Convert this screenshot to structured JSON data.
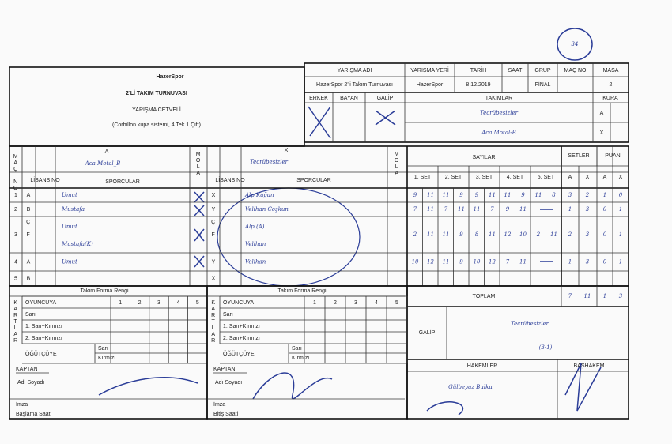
{
  "match_no": "34",
  "header": {
    "logo": "HazerSpor",
    "title": "2'Lİ TAKIM TURNUVASI",
    "subtitle": "YARIŞMA CETVELİ",
    "note": "(Corbillon kupa sistemi, 4 Tek 1 Çift)"
  },
  "info": [
    {
      "label": "YARIŞMA ADI",
      "value": "HazerSpor 2'li Takım Turnuvası"
    },
    {
      "label": "YARIŞMA YERİ",
      "value": "HazerSpor"
    },
    {
      "label": "TARİH",
      "value": "8.12.2019"
    },
    {
      "label": "SAAT"
    },
    {
      "label": "GRUP",
      "value": "FİNAL"
    },
    {
      "label": "MAÇ NO"
    },
    {
      "label": "MASA",
      "value": 2
    }
  ],
  "team_box": {
    "gender": [
      "ERKEK",
      "BAYAN",
      "GALİP"
    ],
    "teams_label": "TAKIMLAR",
    "teams": [
      "Tecrübesizler",
      "Aca Motal-B"
    ],
    "kura_label": "KURA",
    "kura": [
      "A",
      "X"
    ]
  },
  "sheet": {
    "side_a": {
      "letter": "A",
      "team": "Aca Motal_B"
    },
    "side_x": {
      "letter": "X",
      "team": "Tecrübesizler"
    },
    "mac_no_label": "MAÇ NO",
    "mola_label": "MOLA",
    "lisans_label": "LİSANS NO",
    "players_label": "SPORCULAR",
    "sayilar_label": "SAYILAR",
    "set_labels": [
      "1. SET",
      "2. SET",
      "3. SET",
      "4. SET",
      "5. SET"
    ],
    "setler_label": "SETLER",
    "puan_label": "PUAN",
    "ax": [
      "A",
      "X"
    ],
    "matches": [
      {
        "no": 1,
        "a": "A",
        "x": "X",
        "a_players": [
          "Umut"
        ],
        "x_players": [
          "Alp Kağan"
        ],
        "sets": [
          [
            9,
            11
          ],
          [
            11,
            9
          ],
          [
            9,
            11
          ],
          [
            11,
            9
          ],
          [
            11,
            8
          ]
        ],
        "setler": [
          3,
          2
        ],
        "puan": [
          1,
          0
        ]
      },
      {
        "no": 2,
        "a": "B",
        "x": "Y",
        "a_players": [
          "Mustafa"
        ],
        "x_players": [
          "Velihan Coşkun"
        ],
        "sets": [
          [
            7,
            11
          ],
          [
            7,
            11
          ],
          [
            11,
            7
          ],
          [
            9,
            11
          ]
        ],
        "setler": [
          1,
          3
        ],
        "puan": [
          0,
          1
        ]
      },
      {
        "no": 3,
        "a": "ÇİFT",
        "x": "ÇİFT",
        "a_players": [
          "Umut",
          "Mustafa(K)"
        ],
        "x_players": [
          "Alp (A)",
          "Velihan"
        ],
        "sets": [
          [
            2,
            11
          ],
          [
            11,
            9
          ],
          [
            8,
            11
          ],
          [
            12,
            10
          ],
          [
            2,
            11
          ]
        ],
        "setler": [
          2,
          3
        ],
        "puan": [
          0,
          1
        ]
      },
      {
        "no": 4,
        "a": "A",
        "x": "Y",
        "a_players": [
          "Umut"
        ],
        "x_players": [
          "Velihan"
        ],
        "sets": [
          [
            10,
            12
          ],
          [
            11,
            9
          ],
          [
            10,
            12
          ],
          [
            7,
            11
          ]
        ],
        "setler": [
          1,
          3
        ],
        "puan": [
          0,
          1
        ]
      },
      {
        "no": 5,
        "a": "B",
        "x": "X"
      }
    ],
    "toplam_label": "TOPLAM",
    "toplam": {
      "setler": [
        7,
        11
      ],
      "puan": [
        1,
        3
      ]
    },
    "galip_label": "GALİP",
    "galip": "Tecrübesizler",
    "galip_score": "(3-1)"
  },
  "bottom": {
    "forma": "Takım Forma Rengi",
    "oyuncuya": "OYUNCUYA",
    "card_cols": [
      1,
      2,
      3,
      4,
      5
    ],
    "cards": [
      "Sarı",
      "1. Sarı+Kırmızı",
      "2. Sarı+Kırmızı"
    ],
    "kartlar": "KARTLAR",
    "ogutcuye": "ÖĞÜTÇÜYE",
    "ogut_cards": [
      "Sarı",
      "Kırmızı"
    ],
    "kaptan": "KAPTAN",
    "adi": "Adı Soyadı",
    "imza": "İmza",
    "baslama": "Başlama Saati",
    "bitis": "Bitiş Saati",
    "hakemler": "HAKEMLER",
    "bashakem": "BAŞHAKEM",
    "hakem_name": "Gülbeyaz Bulku"
  }
}
